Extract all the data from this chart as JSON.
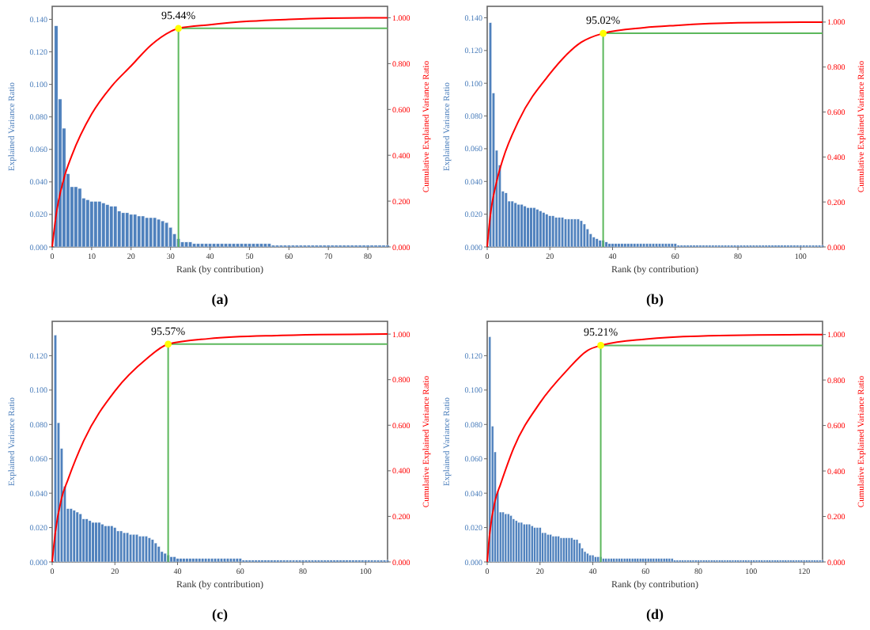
{
  "chart_data": [
    {
      "type": "bar",
      "xlabel": "Rank (by contribution)",
      "ylabel": "Explained Variance Ratio",
      "y2label": "Cumulative Explained Variance Ratio",
      "annotations": [
        "95.44%",
        "(a)"
      ],
      "xlim": [
        0,
        85
      ],
      "xticks": [
        0,
        10,
        20,
        30,
        40,
        50,
        60,
        70,
        80
      ],
      "ylim": [
        0,
        0.148
      ],
      "yticks": [
        {
          "value": 0,
          "label": "0.000"
        },
        {
          "value": 0.02,
          "label": "0.020"
        },
        {
          "value": 0.04,
          "label": "0.040"
        },
        {
          "value": 0.06,
          "label": "0.060"
        },
        {
          "value": 0.08,
          "label": "0.080"
        },
        {
          "value": 0.1,
          "label": "0.100"
        },
        {
          "value": 0.12,
          "label": "0.120"
        },
        {
          "value": 0.14,
          "label": "0.140"
        }
      ],
      "y2lim": [
        0,
        1.05
      ],
      "y2ticks": [
        {
          "value": 0,
          "label": "0.000"
        },
        {
          "value": 0.2,
          "label": "0.200"
        },
        {
          "value": 0.4,
          "label": "0.400"
        },
        {
          "value": 0.6,
          "label": "0.600"
        },
        {
          "value": 0.8,
          "label": "0.800"
        },
        {
          "value": 1,
          "label": "1.000"
        }
      ],
      "x": [
        1,
        2,
        3,
        4,
        5,
        6,
        7,
        8,
        9,
        10,
        11,
        12,
        13,
        14,
        15,
        16,
        17,
        18,
        19,
        20,
        21,
        22,
        23,
        24,
        25,
        26,
        27,
        28,
        29,
        30,
        31,
        32,
        33,
        34,
        35,
        36,
        37,
        38,
        39,
        40,
        41,
        42,
        43,
        44,
        45,
        46,
        47,
        48,
        49,
        50,
        51,
        52,
        53,
        54,
        55,
        56,
        57,
        58,
        59,
        60,
        61,
        62,
        63,
        64,
        65,
        66,
        67,
        68,
        69,
        70,
        71,
        72,
        73,
        74,
        75,
        76,
        77,
        78,
        79,
        80,
        81,
        82,
        83,
        84,
        85
      ],
      "series": [
        {
          "color": "#4f81bd",
          "values": [
            0.136,
            0.091,
            0.073,
            0.045,
            0.037,
            0.037,
            0.036,
            0.03,
            0.029,
            0.028,
            0.028,
            0.028,
            0.027,
            0.026,
            0.025,
            0.025,
            0.022,
            0.021,
            0.021,
            0.02,
            0.02,
            0.019,
            0.019,
            0.018,
            0.018,
            0.018,
            0.017,
            0.016,
            0.015,
            0.012,
            0.008,
            0.005,
            0.003,
            0.003,
            0.003,
            0.002,
            0.002,
            0.002,
            0.002,
            0.002,
            0.002,
            0.002,
            0.002,
            0.002,
            0.002,
            0.002,
            0.002,
            0.002,
            0.002,
            0.002,
            0.002,
            0.002,
            0.002,
            0.002,
            0.002,
            0.001,
            0.001,
            0.001,
            0.001,
            0.001,
            0.001,
            0.001,
            0.001,
            0.001,
            0.001,
            0.001,
            0.001,
            0.001,
            0.001,
            0.001,
            0.001,
            0.001,
            0.001,
            0.001,
            0.001,
            0.001,
            0.001,
            0.001,
            0.001,
            0.001,
            0.001,
            0.001,
            0.001,
            0.001,
            0.001
          ]
        },
        {
          "type": "line",
          "axis": "y2",
          "color": "#ff0000",
          "x": [
            0,
            1,
            3,
            5,
            10,
            15,
            20,
            25,
            30,
            32,
            40,
            50,
            60,
            70,
            85
          ],
          "values": [
            0,
            0.14,
            0.3,
            0.4,
            0.58,
            0.7,
            0.79,
            0.88,
            0.94,
            0.954,
            0.97,
            0.985,
            0.993,
            0.998,
            1.0
          ]
        },
        {
          "type": "scatter",
          "axis": "y2",
          "color": "#ffff00",
          "x": [
            32
          ],
          "values": [
            0.954
          ]
        }
      ],
      "ref_lines": [
        {
          "axis": "x",
          "value": 32,
          "color": "#5cb85c"
        },
        {
          "axis": "y2",
          "value": 0.954,
          "color": "#5cb85c"
        }
      ]
    },
    {
      "type": "bar",
      "xlabel": "Rank (by contribution)",
      "ylabel": "Explained Variance Ratio",
      "y2label": "Cumulative Explained Variance Ratio",
      "annotations": [
        "95.02%",
        "(b)"
      ],
      "xlim": [
        0,
        107
      ],
      "xticks": [
        0,
        20,
        40,
        60,
        80,
        100
      ],
      "ylim": [
        0,
        0.147
      ],
      "yticks": [
        {
          "value": 0,
          "label": "0.000"
        },
        {
          "value": 0.02,
          "label": "0.020"
        },
        {
          "value": 0.04,
          "label": "0.040"
        },
        {
          "value": 0.06,
          "label": "0.060"
        },
        {
          "value": 0.08,
          "label": "0.080"
        },
        {
          "value": 0.1,
          "label": "0.100"
        },
        {
          "value": 0.12,
          "label": "0.120"
        },
        {
          "value": 0.14,
          "label": "0.140"
        }
      ],
      "y2lim": [
        0,
        1.07
      ],
      "y2ticks": [
        {
          "value": 0,
          "label": "0.000"
        },
        {
          "value": 0.2,
          "label": "0.200"
        },
        {
          "value": 0.4,
          "label": "0.400"
        },
        {
          "value": 0.6,
          "label": "0.600"
        },
        {
          "value": 0.8,
          "label": "0.800"
        },
        {
          "value": 1,
          "label": "1.000"
        }
      ],
      "x": [
        1,
        2,
        3,
        4,
        5,
        6,
        7,
        8,
        9,
        10,
        11,
        12,
        13,
        14,
        15,
        16,
        17,
        18,
        19,
        20,
        21,
        22,
        23,
        24,
        25,
        26,
        27,
        28,
        29,
        30,
        31,
        32,
        33,
        34,
        35,
        36,
        37,
        38,
        39,
        40,
        41,
        42,
        43,
        44,
        45,
        46,
        47,
        48,
        49,
        50,
        51,
        52,
        53,
        54,
        55,
        56,
        57,
        58,
        59,
        60,
        61,
        62,
        63,
        64,
        65,
        66,
        67,
        68,
        69,
        70,
        71,
        72,
        73,
        74,
        75,
        76,
        77,
        78,
        79,
        80,
        81,
        82,
        83,
        84,
        85,
        86,
        87,
        88,
        89,
        90,
        91,
        92,
        93,
        94,
        95,
        96,
        97,
        98,
        99,
        100,
        101,
        102,
        103,
        104,
        105,
        106,
        107
      ],
      "series": [
        {
          "color": "#4f81bd",
          "values": [
            0.137,
            0.094,
            0.059,
            0.05,
            0.034,
            0.033,
            0.028,
            0.028,
            0.027,
            0.026,
            0.026,
            0.025,
            0.024,
            0.024,
            0.024,
            0.023,
            0.022,
            0.021,
            0.02,
            0.019,
            0.019,
            0.018,
            0.018,
            0.018,
            0.017,
            0.017,
            0.017,
            0.017,
            0.017,
            0.016,
            0.014,
            0.011,
            0.008,
            0.006,
            0.005,
            0.004,
            0.004,
            0.003,
            0.002,
            0.002,
            0.002,
            0.002,
            0.002,
            0.002,
            0.002,
            0.002,
            0.002,
            0.002,
            0.002,
            0.002,
            0.002,
            0.002,
            0.002,
            0.002,
            0.002,
            0.002,
            0.002,
            0.002,
            0.002,
            0.002,
            0.001,
            0.001,
            0.001,
            0.001,
            0.001,
            0.001,
            0.001,
            0.001,
            0.001,
            0.001,
            0.001,
            0.001,
            0.001,
            0.001,
            0.001,
            0.001,
            0.001,
            0.001,
            0.001,
            0.001,
            0.001,
            0.001,
            0.001,
            0.001,
            0.001,
            0.001,
            0.001,
            0.001,
            0.001,
            0.001,
            0.001,
            0.001,
            0.001,
            0.001,
            0.001,
            0.001,
            0.001,
            0.001,
            0.001,
            0.001,
            0.001,
            0.001,
            0.001,
            0.001,
            0.001,
            0.001,
            0.001
          ]
        },
        {
          "type": "line",
          "axis": "y2",
          "color": "#ff0000",
          "x": [
            0,
            1,
            3,
            5,
            10,
            20,
            30,
            37,
            50,
            60,
            80,
            107
          ],
          "values": [
            0,
            0.14,
            0.29,
            0.39,
            0.56,
            0.77,
            0.91,
            0.95,
            0.975,
            0.985,
            0.997,
            1.0
          ]
        },
        {
          "type": "scatter",
          "axis": "y2",
          "color": "#ffff00",
          "x": [
            37
          ],
          "values": [
            0.95
          ]
        }
      ],
      "ref_lines": [
        {
          "axis": "x",
          "value": 37,
          "color": "#5cb85c"
        },
        {
          "axis": "y2",
          "value": 0.95,
          "color": "#5cb85c"
        }
      ]
    },
    {
      "type": "bar",
      "xlabel": "Rank (by contribution)",
      "ylabel": "Explained Variance Ratio",
      "y2label": "Cumulative Explained Variance Ratio",
      "annotations": [
        "95.57%",
        "(c)"
      ],
      "xlim": [
        0,
        107
      ],
      "xticks": [
        0,
        20,
        40,
        60,
        80,
        100
      ],
      "ylim": [
        0,
        0.14
      ],
      "yticks": [
        {
          "value": 0,
          "label": "0.000"
        },
        {
          "value": 0.02,
          "label": "0.020"
        },
        {
          "value": 0.04,
          "label": "0.040"
        },
        {
          "value": 0.06,
          "label": "0.060"
        },
        {
          "value": 0.08,
          "label": "0.080"
        },
        {
          "value": 0.1,
          "label": "0.100"
        },
        {
          "value": 0.12,
          "label": "0.120"
        }
      ],
      "y2lim": [
        0,
        1.056
      ],
      "y2ticks": [
        {
          "value": 0,
          "label": "0.000"
        },
        {
          "value": 0.2,
          "label": "0.200"
        },
        {
          "value": 0.4,
          "label": "0.400"
        },
        {
          "value": 0.6,
          "label": "0.600"
        },
        {
          "value": 0.8,
          "label": "0.800"
        },
        {
          "value": 1,
          "label": "1.000"
        }
      ],
      "x": [
        1,
        2,
        3,
        4,
        5,
        6,
        7,
        8,
        9,
        10,
        11,
        12,
        13,
        14,
        15,
        16,
        17,
        18,
        19,
        20,
        21,
        22,
        23,
        24,
        25,
        26,
        27,
        28,
        29,
        30,
        31,
        32,
        33,
        34,
        35,
        36,
        37,
        38,
        39,
        40,
        41,
        42,
        43,
        44,
        45,
        46,
        47,
        48,
        49,
        50,
        51,
        52,
        53,
        54,
        55,
        56,
        57,
        58,
        59,
        60,
        61,
        62,
        63,
        64,
        65,
        66,
        67,
        68,
        69,
        70,
        71,
        72,
        73,
        74,
        75,
        76,
        77,
        78,
        79,
        80,
        81,
        82,
        83,
        84,
        85,
        86,
        87,
        88,
        89,
        90,
        91,
        92,
        93,
        94,
        95,
        96,
        97,
        98,
        99,
        100,
        101,
        102,
        103,
        104,
        105,
        106,
        107
      ],
      "series": [
        {
          "color": "#4f81bd",
          "values": [
            0.132,
            0.081,
            0.066,
            0.044,
            0.031,
            0.031,
            0.03,
            0.029,
            0.028,
            0.025,
            0.025,
            0.024,
            0.023,
            0.023,
            0.023,
            0.022,
            0.021,
            0.021,
            0.021,
            0.02,
            0.018,
            0.018,
            0.017,
            0.017,
            0.016,
            0.016,
            0.016,
            0.015,
            0.015,
            0.015,
            0.014,
            0.013,
            0.011,
            0.009,
            0.006,
            0.005,
            0.004,
            0.003,
            0.003,
            0.002,
            0.002,
            0.002,
            0.002,
            0.002,
            0.002,
            0.002,
            0.002,
            0.002,
            0.002,
            0.002,
            0.002,
            0.002,
            0.002,
            0.002,
            0.002,
            0.002,
            0.002,
            0.002,
            0.002,
            0.002,
            0.001,
            0.001,
            0.001,
            0.001,
            0.001,
            0.001,
            0.001,
            0.001,
            0.001,
            0.001,
            0.001,
            0.001,
            0.001,
            0.001,
            0.001,
            0.001,
            0.001,
            0.001,
            0.001,
            0.001,
            0.001,
            0.001,
            0.001,
            0.001,
            0.001,
            0.001,
            0.001,
            0.001,
            0.001,
            0.001,
            0.001,
            0.001,
            0.001,
            0.001,
            0.001,
            0.001,
            0.001,
            0.001,
            0.001,
            0.001,
            0.001,
            0.001,
            0.001,
            0.001,
            0.001,
            0.001,
            0.001
          ]
        },
        {
          "type": "line",
          "axis": "y2",
          "color": "#ff0000",
          "x": [
            0,
            1,
            3,
            5,
            10,
            20,
            30,
            37,
            50,
            70,
            107
          ],
          "values": [
            0,
            0.13,
            0.28,
            0.36,
            0.53,
            0.75,
            0.89,
            0.956,
            0.98,
            0.993,
            1.0
          ]
        },
        {
          "type": "scatter",
          "axis": "y2",
          "color": "#ffff00",
          "x": [
            37
          ],
          "values": [
            0.956
          ]
        }
      ],
      "ref_lines": [
        {
          "axis": "x",
          "value": 37,
          "color": "#5cb85c"
        },
        {
          "axis": "y2",
          "value": 0.956,
          "color": "#5cb85c"
        }
      ]
    },
    {
      "type": "bar",
      "xlabel": "Rank (by contribution)",
      "ylabel": "Explained Variance Ratio",
      "y2label": "Cumulative Explained Variance Ratio",
      "annotations": [
        "95.21%",
        "(d)"
      ],
      "xlim": [
        0,
        127
      ],
      "xticks": [
        0,
        20,
        40,
        60,
        80,
        100,
        120
      ],
      "ylim": [
        0,
        0.14
      ],
      "yticks": [
        {
          "value": 0,
          "label": "0.000"
        },
        {
          "value": 0.02,
          "label": "0.020"
        },
        {
          "value": 0.04,
          "label": "0.040"
        },
        {
          "value": 0.06,
          "label": "0.060"
        },
        {
          "value": 0.08,
          "label": "0.080"
        },
        {
          "value": 0.1,
          "label": "0.100"
        },
        {
          "value": 0.12,
          "label": "0.120"
        }
      ],
      "y2lim": [
        0,
        1.058
      ],
      "y2ticks": [
        {
          "value": 0,
          "label": "0.000"
        },
        {
          "value": 0.2,
          "label": "0.200"
        },
        {
          "value": 0.4,
          "label": "0.400"
        },
        {
          "value": 0.6,
          "label": "0.600"
        },
        {
          "value": 0.8,
          "label": "0.800"
        },
        {
          "value": 1,
          "label": "1.000"
        }
      ],
      "x": [
        1,
        2,
        3,
        4,
        5,
        6,
        7,
        8,
        9,
        10,
        11,
        12,
        13,
        14,
        15,
        16,
        17,
        18,
        19,
        20,
        21,
        22,
        23,
        24,
        25,
        26,
        27,
        28,
        29,
        30,
        31,
        32,
        33,
        34,
        35,
        36,
        37,
        38,
        39,
        40,
        41,
        42,
        43,
        44,
        45,
        46,
        47,
        48,
        49,
        50,
        51,
        52,
        53,
        54,
        55,
        56,
        57,
        58,
        59,
        60,
        61,
        62,
        63,
        64,
        65,
        66,
        67,
        68,
        69,
        70,
        71,
        72,
        73,
        74,
        75,
        76,
        77,
        78,
        79,
        80,
        81,
        82,
        83,
        84,
        85,
        86,
        87,
        88,
        89,
        90,
        91,
        92,
        93,
        94,
        95,
        96,
        97,
        98,
        99,
        100,
        101,
        102,
        103,
        104,
        105,
        106,
        107,
        108,
        109,
        110,
        111,
        112,
        113,
        114,
        115,
        116,
        117,
        118,
        119,
        120,
        121,
        122,
        123,
        124,
        125,
        126,
        127
      ],
      "series": [
        {
          "color": "#4f81bd",
          "values": [
            0.131,
            0.079,
            0.064,
            0.041,
            0.029,
            0.029,
            0.028,
            0.028,
            0.027,
            0.025,
            0.024,
            0.023,
            0.023,
            0.022,
            0.022,
            0.022,
            0.021,
            0.02,
            0.02,
            0.02,
            0.017,
            0.017,
            0.016,
            0.016,
            0.015,
            0.015,
            0.015,
            0.014,
            0.014,
            0.014,
            0.014,
            0.014,
            0.013,
            0.013,
            0.011,
            0.008,
            0.006,
            0.005,
            0.004,
            0.004,
            0.003,
            0.003,
            0.003,
            0.002,
            0.002,
            0.002,
            0.002,
            0.002,
            0.002,
            0.002,
            0.002,
            0.002,
            0.002,
            0.002,
            0.002,
            0.002,
            0.002,
            0.002,
            0.002,
            0.002,
            0.002,
            0.002,
            0.002,
            0.002,
            0.002,
            0.002,
            0.002,
            0.002,
            0.002,
            0.002,
            0.001,
            0.001,
            0.001,
            0.001,
            0.001,
            0.001,
            0.001,
            0.001,
            0.001,
            0.001,
            0.001,
            0.001,
            0.001,
            0.001,
            0.001,
            0.001,
            0.001,
            0.001,
            0.001,
            0.001,
            0.001,
            0.001,
            0.001,
            0.001,
            0.001,
            0.001,
            0.001,
            0.001,
            0.001,
            0.001,
            0.001,
            0.001,
            0.001,
            0.001,
            0.001,
            0.001,
            0.001,
            0.001,
            0.001,
            0.001,
            0.001,
            0.001,
            0.001,
            0.001,
            0.001,
            0.001,
            0.001,
            0.001,
            0.001,
            0.001,
            0.001,
            0.001,
            0.001,
            0.001,
            0.001,
            0.001,
            0.001
          ]
        },
        {
          "type": "line",
          "axis": "y2",
          "color": "#ff0000",
          "x": [
            0,
            1,
            3,
            5,
            10,
            20,
            30,
            38,
            43,
            60,
            80,
            127
          ],
          "values": [
            0,
            0.13,
            0.27,
            0.34,
            0.5,
            0.7,
            0.84,
            0.93,
            0.952,
            0.98,
            0.993,
            1.0
          ]
        },
        {
          "type": "scatter",
          "axis": "y2",
          "color": "#ffff00",
          "x": [
            43
          ],
          "values": [
            0.952
          ]
        }
      ],
      "ref_lines": [
        {
          "axis": "x",
          "value": 43,
          "color": "#5cb85c"
        },
        {
          "axis": "y2",
          "value": 0.952,
          "color": "#5cb85c"
        }
      ]
    }
  ]
}
